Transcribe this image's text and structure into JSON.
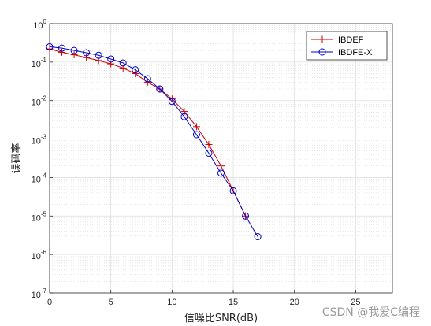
{
  "chart_data": {
    "type": "line",
    "title": "",
    "xlabel": "信噪比SNR(dB)",
    "ylabel": "误码率",
    "xlim": [
      0,
      28
    ],
    "ylim": [
      1e-07,
      1
    ],
    "yscale": "log",
    "grid": true,
    "minor_grid": true,
    "legend_position": "top-right",
    "x_ticks": [
      0,
      5,
      10,
      15,
      20,
      25
    ],
    "y_ticks": [
      {
        "value": 1,
        "base": "10",
        "exp": "0"
      },
      {
        "value": 0.1,
        "base": "10",
        "exp": "-1"
      },
      {
        "value": 0.01,
        "base": "10",
        "exp": "-2"
      },
      {
        "value": 0.001,
        "base": "10",
        "exp": "-3"
      },
      {
        "value": 0.0001,
        "base": "10",
        "exp": "-4"
      },
      {
        "value": 1e-05,
        "base": "10",
        "exp": "-5"
      },
      {
        "value": 1e-06,
        "base": "10",
        "exp": "-6"
      },
      {
        "value": 1e-07,
        "base": "10",
        "exp": "-7"
      }
    ],
    "series": [
      {
        "name": "IBDEF",
        "color": "#cc0000",
        "marker": "plus",
        "x": [
          0,
          1,
          2,
          3,
          4,
          5,
          6,
          7,
          8,
          9,
          10,
          11,
          12,
          13,
          14,
          15,
          16
        ],
        "y": [
          0.22,
          0.18,
          0.155,
          0.13,
          0.11,
          0.09,
          0.07,
          0.05,
          0.03,
          0.02,
          0.011,
          0.0052,
          0.0021,
          0.00072,
          0.0002,
          4.5e-05,
          1e-05
        ]
      },
      {
        "name": "IBDFE-X",
        "color": "#0000cc",
        "marker": "circle",
        "x": [
          0,
          1,
          2,
          3,
          4,
          5,
          6,
          7,
          8,
          9,
          10,
          11,
          12,
          13,
          14,
          15,
          16,
          17
        ],
        "y": [
          0.25,
          0.23,
          0.2,
          0.175,
          0.15,
          0.12,
          0.095,
          0.063,
          0.037,
          0.02,
          0.0095,
          0.0038,
          0.0013,
          0.00043,
          0.00013,
          4.5e-05,
          1e-05,
          2.9e-06
        ]
      }
    ]
  },
  "watermark": "CSDN @我爱C编程"
}
